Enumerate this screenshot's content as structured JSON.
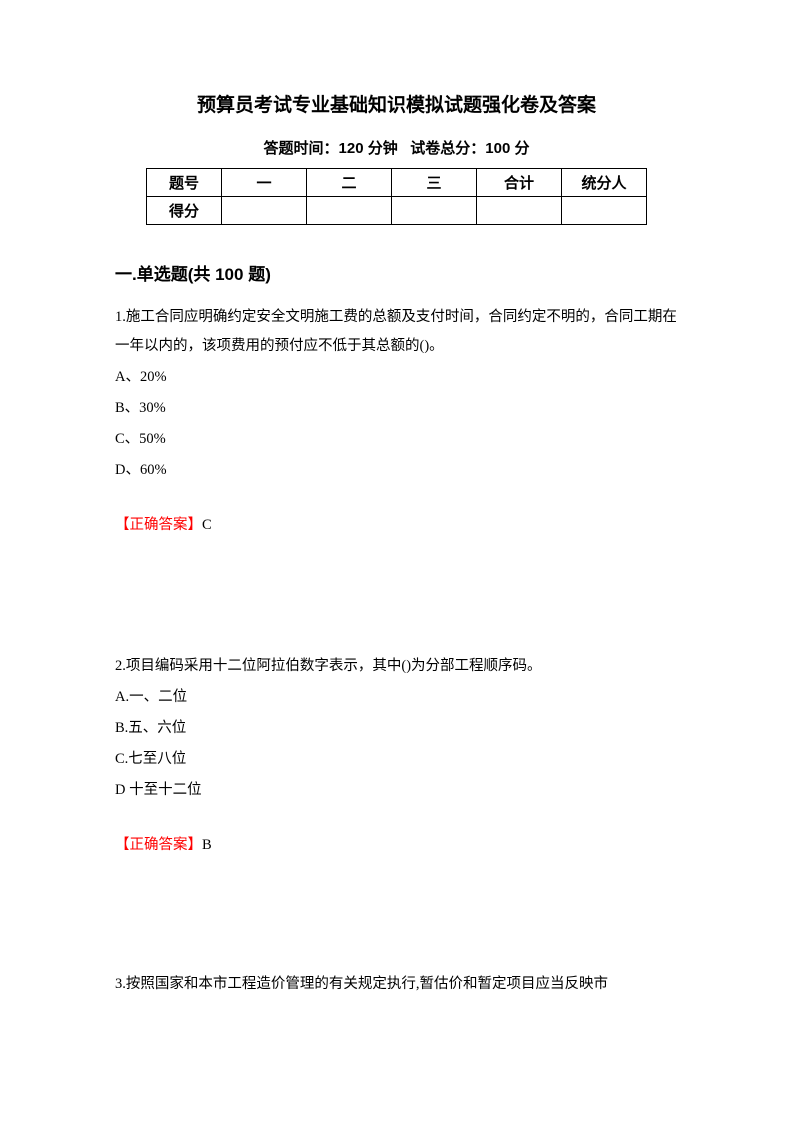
{
  "title": "预算员考试专业基础知识模拟试题强化卷及答案",
  "subtitle_time_label": "答题时间：",
  "subtitle_time_value": "120 分钟",
  "subtitle_score_label": "试卷总分：",
  "subtitle_score_value": "100 分",
  "table": {
    "row1": [
      "题号",
      "一",
      "二",
      "三",
      "合计",
      "统分人"
    ],
    "row2_label": "得分"
  },
  "section_title": "一.单选题(共 100 题)",
  "q1": {
    "text": "1.施工合同应明确约定安全文明施工费的总额及支付时间，合同约定不明的，合同工期在一年以内的，该项费用的预付应不低于其总额的()。",
    "optA": "A、20%",
    "optB": "B、30%",
    "optC": "C、50%",
    "optD": "D、60%",
    "answer_label": "【正确答案】",
    "answer_letter": "C"
  },
  "q2": {
    "text": "2.项目编码采用十二位阿拉伯数字表示，其中()为分部工程顺序码。",
    "optA": "A.一、二位",
    "optB": "B.五、六位",
    "optC": "C.七至八位",
    "optD": "D 十至十二位",
    "answer_label": "【正确答案】",
    "answer_letter": "B"
  },
  "q3": {
    "text": "3.按照国家和本市工程造价管理的有关规定执行,暂估价和暂定项目应当反映市"
  }
}
